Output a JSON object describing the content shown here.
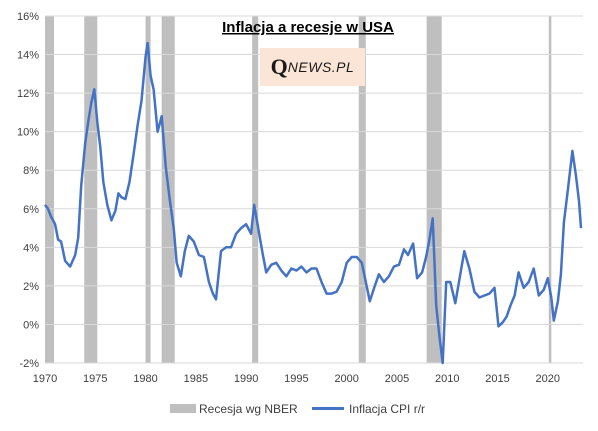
{
  "chart_data": {
    "type": "line",
    "title": "Inflacja a recesje w USA",
    "watermark": {
      "q": "Q",
      "rest": "NEWS.PL"
    },
    "xlim": [
      1970,
      2023.5
    ],
    "ylim": [
      -2,
      16
    ],
    "x_ticks": [
      1970,
      1975,
      1980,
      1985,
      1990,
      1995,
      2000,
      2005,
      2010,
      2015,
      2020
    ],
    "y_ticks": [
      -2,
      0,
      2,
      4,
      6,
      8,
      10,
      12,
      14,
      16
    ],
    "y_tick_labels": [
      "-2%",
      "0%",
      "2%",
      "4%",
      "6%",
      "8%",
      "10%",
      "12%",
      "14%",
      "16%"
    ],
    "grid": true,
    "legend_position": "bottom",
    "recessions": {
      "name": "Recesja wg NBER",
      "color": "#bfbfbf",
      "periods": [
        [
          1970.0,
          1970.9
        ],
        [
          1973.9,
          1975.2
        ],
        [
          1980.0,
          1980.5
        ],
        [
          1981.6,
          1982.9
        ],
        [
          1990.6,
          1991.2
        ],
        [
          2001.2,
          2001.9
        ],
        [
          2007.95,
          2009.45
        ],
        [
          2020.1,
          2020.35
        ]
      ]
    },
    "series": [
      {
        "name": "Inflacja CPI r/r",
        "color": "#4472c4",
        "x": [
          1970.0,
          1970.3,
          1970.6,
          1971.0,
          1971.3,
          1971.6,
          1972.0,
          1972.5,
          1973.0,
          1973.3,
          1973.6,
          1974.0,
          1974.3,
          1974.6,
          1974.9,
          1975.2,
          1975.5,
          1975.8,
          1976.2,
          1976.6,
          1977.0,
          1977.3,
          1977.6,
          1978.0,
          1978.4,
          1978.8,
          1979.2,
          1979.6,
          1980.0,
          1980.2,
          1980.5,
          1980.8,
          1981.2,
          1981.6,
          1982.0,
          1982.4,
          1982.8,
          1983.1,
          1983.5,
          1983.9,
          1984.3,
          1984.8,
          1985.3,
          1985.8,
          1986.3,
          1986.7,
          1987.0,
          1987.5,
          1988.0,
          1988.5,
          1989.0,
          1989.5,
          1990.0,
          1990.5,
          1990.8,
          1991.2,
          1991.6,
          1992.0,
          1992.5,
          1993.0,
          1993.5,
          1994.0,
          1994.5,
          1995.0,
          1995.5,
          1996.0,
          1996.5,
          1997.0,
          1997.5,
          1998.0,
          1998.5,
          1999.0,
          1999.5,
          2000.0,
          2000.5,
          2001.0,
          2001.5,
          2001.9,
          2002.3,
          2002.8,
          2003.2,
          2003.7,
          2004.2,
          2004.7,
          2005.2,
          2005.7,
          2006.1,
          2006.6,
          2007.0,
          2007.5,
          2007.9,
          2008.2,
          2008.55,
          2008.9,
          2009.2,
          2009.55,
          2009.9,
          2010.3,
          2010.8,
          2011.3,
          2011.7,
          2012.2,
          2012.7,
          2013.2,
          2013.7,
          2014.2,
          2014.7,
          2015.1,
          2015.5,
          2015.9,
          2016.3,
          2016.7,
          2017.1,
          2017.6,
          2018.1,
          2018.6,
          2019.1,
          2019.6,
          2020.0,
          2020.35,
          2020.6,
          2021.0,
          2021.3,
          2021.6,
          2022.0,
          2022.45,
          2022.8,
          2023.1,
          2023.3
        ],
        "values": [
          6.2,
          6.0,
          5.6,
          5.2,
          4.4,
          4.3,
          3.3,
          3.0,
          3.6,
          4.5,
          7.2,
          9.4,
          10.5,
          11.5,
          12.2,
          10.5,
          9.2,
          7.4,
          6.2,
          5.4,
          5.9,
          6.8,
          6.6,
          6.5,
          7.4,
          8.8,
          10.3,
          11.6,
          13.9,
          14.6,
          12.9,
          12.2,
          10.0,
          10.8,
          8.2,
          6.5,
          5.0,
          3.2,
          2.5,
          3.8,
          4.6,
          4.3,
          3.6,
          3.5,
          2.2,
          1.6,
          1.3,
          3.8,
          4.0,
          4.0,
          4.7,
          5.0,
          5.2,
          4.7,
          6.2,
          5.0,
          3.8,
          2.7,
          3.1,
          3.2,
          2.8,
          2.5,
          2.9,
          2.8,
          3.0,
          2.7,
          2.9,
          2.9,
          2.2,
          1.6,
          1.6,
          1.7,
          2.2,
          3.2,
          3.5,
          3.5,
          3.2,
          2.2,
          1.2,
          2.0,
          2.6,
          2.2,
          2.5,
          3.0,
          3.1,
          3.9,
          3.6,
          4.2,
          2.4,
          2.7,
          3.5,
          4.3,
          5.5,
          1.0,
          -0.5,
          -2.0,
          2.2,
          2.2,
          1.1,
          2.6,
          3.8,
          2.9,
          1.7,
          1.4,
          1.5,
          1.6,
          1.9,
          -0.1,
          0.1,
          0.4,
          1.0,
          1.5,
          2.7,
          1.9,
          2.2,
          2.9,
          1.5,
          1.8,
          2.4,
          1.4,
          0.2,
          1.2,
          2.6,
          5.3,
          7.0,
          9.0,
          7.7,
          6.4,
          5.0
        ]
      }
    ]
  }
}
